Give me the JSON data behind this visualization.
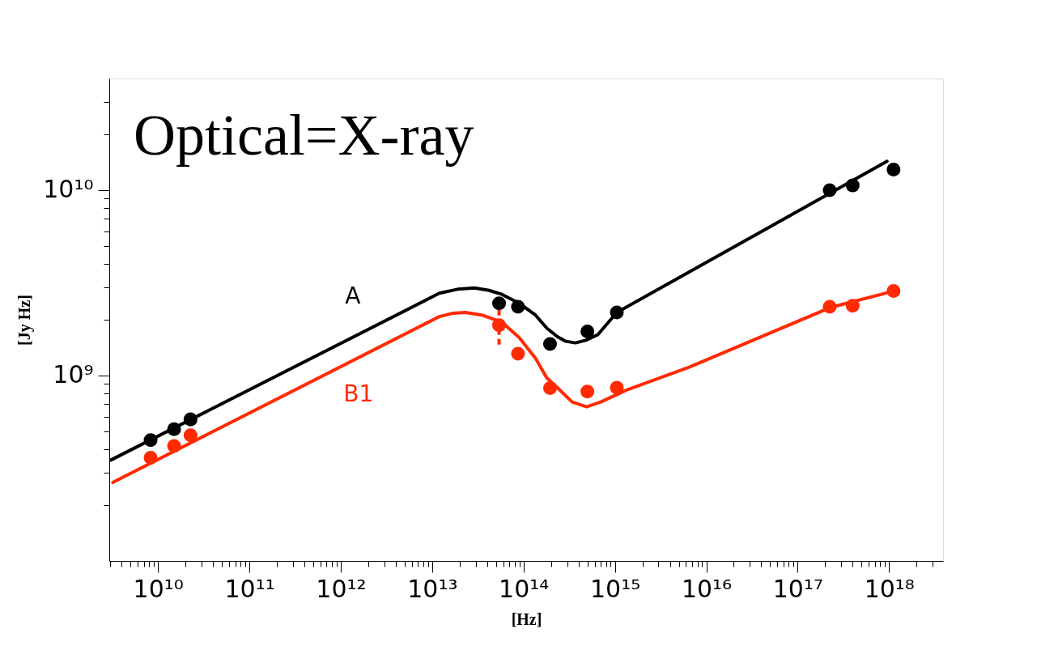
{
  "chart_data": {
    "type": "scatter",
    "title": "Optical=X-ray",
    "xlabel": "[Hz]",
    "ylabel": "[Jy Hz]",
    "log": "xy",
    "grid": false,
    "marker": "circle",
    "xlim": [
      2930000000.0,
      3.9e+18
    ],
    "ylim": [
      100000000.0,
      40000000000.0
    ],
    "xticks": [
      {
        "value": 3000000000.0,
        "label": null
      },
      {
        "value": 4000000000.0,
        "label": null
      },
      {
        "value": 5000000000.0,
        "label": null
      },
      {
        "value": 6000000000.0,
        "label": null
      },
      {
        "value": 7000000000.0,
        "label": null
      },
      {
        "value": 8000000000.0,
        "label": null
      },
      {
        "value": 9000000000.0,
        "label": null
      },
      {
        "value": 10000000000.0,
        "label": "10¹⁰"
      },
      {
        "value": 20000000000.0,
        "label": null
      },
      {
        "value": 30000000000.0,
        "label": null
      },
      {
        "value": 40000000000.0,
        "label": null
      },
      {
        "value": 50000000000.0,
        "label": null
      },
      {
        "value": 60000000000.0,
        "label": null
      },
      {
        "value": 70000000000.0,
        "label": null
      },
      {
        "value": 80000000000.0,
        "label": null
      },
      {
        "value": 90000000000.0,
        "label": null
      },
      {
        "value": 100000000000.0,
        "label": "10¹¹"
      },
      {
        "value": 200000000000.0,
        "label": null
      },
      {
        "value": 300000000000.0,
        "label": null
      },
      {
        "value": 400000000000.0,
        "label": null
      },
      {
        "value": 500000000000.0,
        "label": null
      },
      {
        "value": 600000000000.0,
        "label": null
      },
      {
        "value": 700000000000.0,
        "label": null
      },
      {
        "value": 800000000000.0,
        "label": null
      },
      {
        "value": 900000000000.0,
        "label": null
      },
      {
        "value": 1000000000000.0,
        "label": "10¹²"
      },
      {
        "value": 2000000000000.0,
        "label": null
      },
      {
        "value": 3000000000000.0,
        "label": null
      },
      {
        "value": 4000000000000.0,
        "label": null
      },
      {
        "value": 5000000000000.0,
        "label": null
      },
      {
        "value": 6000000000000.0,
        "label": null
      },
      {
        "value": 7000000000000.0,
        "label": null
      },
      {
        "value": 8000000000000.0,
        "label": null
      },
      {
        "value": 9000000000000.0,
        "label": null
      },
      {
        "value": 10000000000000.0,
        "label": "10¹³"
      },
      {
        "value": 20000000000000.0,
        "label": null
      },
      {
        "value": 30000000000000.0,
        "label": null
      },
      {
        "value": 40000000000000.0,
        "label": null
      },
      {
        "value": 50000000000000.0,
        "label": null
      },
      {
        "value": 60000000000000.0,
        "label": null
      },
      {
        "value": 70000000000000.0,
        "label": null
      },
      {
        "value": 80000000000000.0,
        "label": null
      },
      {
        "value": 90000000000000.0,
        "label": null
      },
      {
        "value": 100000000000000.0,
        "label": "10¹⁴"
      },
      {
        "value": 200000000000000.0,
        "label": null
      },
      {
        "value": 300000000000000.0,
        "label": null
      },
      {
        "value": 400000000000000.0,
        "label": null
      },
      {
        "value": 500000000000000.0,
        "label": null
      },
      {
        "value": 600000000000000.0,
        "label": null
      },
      {
        "value": 700000000000000.0,
        "label": null
      },
      {
        "value": 800000000000000.0,
        "label": null
      },
      {
        "value": 900000000000000.0,
        "label": null
      },
      {
        "value": 1000000000000000.0,
        "label": "10¹⁵"
      },
      {
        "value": 2000000000000000.0,
        "label": null
      },
      {
        "value": 3000000000000000.0,
        "label": null
      },
      {
        "value": 4000000000000000.0,
        "label": null
      },
      {
        "value": 5000000000000000.0,
        "label": null
      },
      {
        "value": 6000000000000000.0,
        "label": null
      },
      {
        "value": 7000000000000000.0,
        "label": null
      },
      {
        "value": 8000000000000000.0,
        "label": null
      },
      {
        "value": 9000000000000000.0,
        "label": null
      },
      {
        "value": 1e+16,
        "label": "10¹⁶"
      },
      {
        "value": 2e+16,
        "label": null
      },
      {
        "value": 3e+16,
        "label": null
      },
      {
        "value": 4e+16,
        "label": null
      },
      {
        "value": 5e+16,
        "label": null
      },
      {
        "value": 6e+16,
        "label": null
      },
      {
        "value": 7e+16,
        "label": null
      },
      {
        "value": 8e+16,
        "label": null
      },
      {
        "value": 9e+16,
        "label": null
      },
      {
        "value": 1e+17,
        "label": "10¹⁷"
      },
      {
        "value": 2e+17,
        "label": null
      },
      {
        "value": 3e+17,
        "label": null
      },
      {
        "value": 4e+17,
        "label": null
      },
      {
        "value": 5e+17,
        "label": null
      },
      {
        "value": 6e+17,
        "label": null
      },
      {
        "value": 7e+17,
        "label": null
      },
      {
        "value": 8e+17,
        "label": null
      },
      {
        "value": 9e+17,
        "label": null
      },
      {
        "value": 1e+18,
        "label": "10¹⁸"
      },
      {
        "value": 2e+18,
        "label": null
      },
      {
        "value": 3e+18,
        "label": null
      }
    ],
    "yticks": [
      {
        "value": 200000000.0,
        "label": null
      },
      {
        "value": 300000000.0,
        "label": null
      },
      {
        "value": 400000000.0,
        "label": null
      },
      {
        "value": 500000000.0,
        "label": null
      },
      {
        "value": 600000000.0,
        "label": null
      },
      {
        "value": 700000000.0,
        "label": null
      },
      {
        "value": 800000000.0,
        "label": null
      },
      {
        "value": 900000000.0,
        "label": null
      },
      {
        "value": 1000000000.0,
        "label": "10⁹"
      },
      {
        "value": 2000000000.0,
        "label": null
      },
      {
        "value": 3000000000.0,
        "label": null
      },
      {
        "value": 4000000000.0,
        "label": null
      },
      {
        "value": 5000000000.0,
        "label": null
      },
      {
        "value": 6000000000.0,
        "label": null
      },
      {
        "value": 7000000000.0,
        "label": null
      },
      {
        "value": 8000000000.0,
        "label": null
      },
      {
        "value": 9000000000.0,
        "label": null
      },
      {
        "value": 10000000000.0,
        "label": "10¹⁰"
      },
      {
        "value": 20000000000.0,
        "label": null
      },
      {
        "value": 30000000000.0,
        "label": null
      }
    ],
    "series": [
      {
        "name": "A",
        "type": "line",
        "marker": "none",
        "color": "#000000",
        "x": [
          3050000000.0,
          12000000000000.0,
          19000000000000.0,
          29000000000000.0,
          42000000000000.0,
          58000000000000.0,
          90000000000000.0,
          135000000000000.0,
          180000000000000.0,
          235000000000000.0,
          290000000000000.0,
          370000000000000.0,
          480000000000000.0,
          650000000000000.0,
          1050000000000000.0,
          9.5e+17
        ],
        "values": [
          350000000.0,
          2780000000.0,
          2920000000.0,
          2970000000.0,
          2880000000.0,
          2740000000.0,
          2450000000.0,
          2120000000.0,
          1800000000.0,
          1620000000.0,
          1530000000.0,
          1500000000.0,
          1550000000.0,
          1660000000.0,
          2190000000.0,
          14300000000.0
        ]
      },
      {
        "name": "B1",
        "type": "line",
        "marker": "none",
        "color": "#ff2a00",
        "x": [
          3200000000.0,
          12000000000000.0,
          17000000000000.0,
          23000000000000.0,
          35000000000000.0,
          58000000000000.0,
          90000000000000.0,
          135000000000000.0,
          180000000000000.0,
          235000000000000.0,
          340000000000000.0,
          490000000000000.0,
          700000000000000.0,
          1380000000000000.0,
          6500000000000000.0,
          2.3e+17,
          1.15e+18
        ],
        "values": [
          265000000.0,
          2080000000.0,
          2170000000.0,
          2190000000.0,
          2120000000.0,
          1940000000.0,
          1600000000.0,
          1240000000.0,
          970000000.0,
          860000000.0,
          720000000.0,
          678000000.0,
          720000000.0,
          840000000.0,
          1110000000.0,
          2330000000.0,
          2860000000.0
        ]
      },
      {
        "color": "#000000",
        "x": [
          8300000000.0,
          15000000000.0,
          22700000000.0,
          54000000000000.0,
          87000000000000.0,
          195000000000000.0,
          500000000000000.0,
          1050000000000000.0,
          2.24e+17,
          4e+17,
          1.12e+18
        ],
        "values": [
          448000000.0,
          514000000.0,
          580000000.0,
          2450000000.0,
          2350000000.0,
          1480000000.0,
          1730000000.0,
          2190000000.0,
          10000000000.0,
          10600000000.0,
          12900000000.0
        ]
      },
      {
        "color": "#ff2a00",
        "x": [
          8300000000.0,
          15000000000.0,
          22700000000.0,
          54000000000000.0,
          87000000000000.0,
          195000000000000.0,
          500000000000000.0,
          1050000000000000.0,
          2.24e+17,
          4e+17,
          1.12e+18
        ],
        "values": [
          360000000.0,
          417000000.0,
          476000000.0,
          1870000000.0,
          1310000000.0,
          855000000.0,
          820000000.0,
          860000000.0,
          2350000000.0,
          2380000000.0,
          2860000000.0
        ],
        "errors": [
          null,
          null,
          null,
          [
            1470000000.0,
            2300000000.0
          ],
          null,
          null,
          null,
          null,
          null,
          null,
          null
        ]
      }
    ]
  }
}
